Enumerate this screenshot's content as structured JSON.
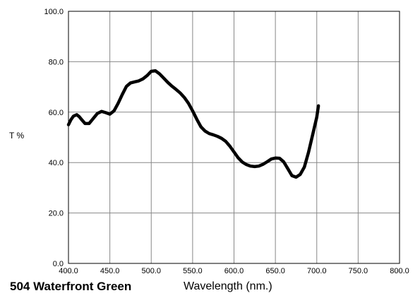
{
  "chart_data": {
    "type": "line",
    "title": "504 Waterfront Green",
    "xlabel": "Wavelength (nm.)",
    "ylabel": "T %",
    "xlim": [
      400,
      800
    ],
    "ylim": [
      0,
      100
    ],
    "grid": true,
    "x_ticks": [
      "400.0",
      "450.0",
      "500.0",
      "550.0",
      "600.0",
      "650.0",
      "700.0",
      "750.0",
      "800.0"
    ],
    "y_ticks": [
      "0.0",
      "20.0",
      "40.0",
      "60.0",
      "80.0",
      "100.0"
    ],
    "series": [
      {
        "color": "#000000",
        "points": [
          [
            400,
            55
          ],
          [
            403,
            57
          ],
          [
            406,
            58.4
          ],
          [
            410,
            59
          ],
          [
            413,
            58.2
          ],
          [
            416,
            57
          ],
          [
            420,
            55.5
          ],
          [
            425,
            55.5
          ],
          [
            430,
            57.5
          ],
          [
            435,
            59.5
          ],
          [
            440,
            60.3
          ],
          [
            445,
            59.8
          ],
          [
            450,
            59.2
          ],
          [
            455,
            60.5
          ],
          [
            460,
            63.5
          ],
          [
            465,
            67
          ],
          [
            470,
            70.2
          ],
          [
            475,
            71.6
          ],
          [
            480,
            72
          ],
          [
            485,
            72.4
          ],
          [
            490,
            73.2
          ],
          [
            495,
            74.5
          ],
          [
            500,
            76.2
          ],
          [
            505,
            76.4
          ],
          [
            510,
            75.2
          ],
          [
            515,
            73.5
          ],
          [
            520,
            71.8
          ],
          [
            525,
            70.3
          ],
          [
            530,
            69
          ],
          [
            535,
            67.6
          ],
          [
            540,
            65.8
          ],
          [
            545,
            63.5
          ],
          [
            550,
            60.5
          ],
          [
            555,
            57.2
          ],
          [
            560,
            54.2
          ],
          [
            565,
            52.5
          ],
          [
            570,
            51.5
          ],
          [
            575,
            51
          ],
          [
            580,
            50.4
          ],
          [
            585,
            49.6
          ],
          [
            590,
            48.4
          ],
          [
            595,
            46.5
          ],
          [
            600,
            44.2
          ],
          [
            605,
            41.9
          ],
          [
            610,
            40.2
          ],
          [
            615,
            39.2
          ],
          [
            620,
            38.6
          ],
          [
            625,
            38.4
          ],
          [
            630,
            38.6
          ],
          [
            635,
            39.3
          ],
          [
            640,
            40.3
          ],
          [
            645,
            41.4
          ],
          [
            650,
            41.8
          ],
          [
            655,
            41.7
          ],
          [
            660,
            40.3
          ],
          [
            665,
            37.6
          ],
          [
            670,
            34.8
          ],
          [
            675,
            34.2
          ],
          [
            680,
            35.3
          ],
          [
            685,
            38.2
          ],
          [
            690,
            44
          ],
          [
            695,
            51
          ],
          [
            700,
            58
          ],
          [
            702,
            62.5
          ]
        ]
      }
    ]
  }
}
